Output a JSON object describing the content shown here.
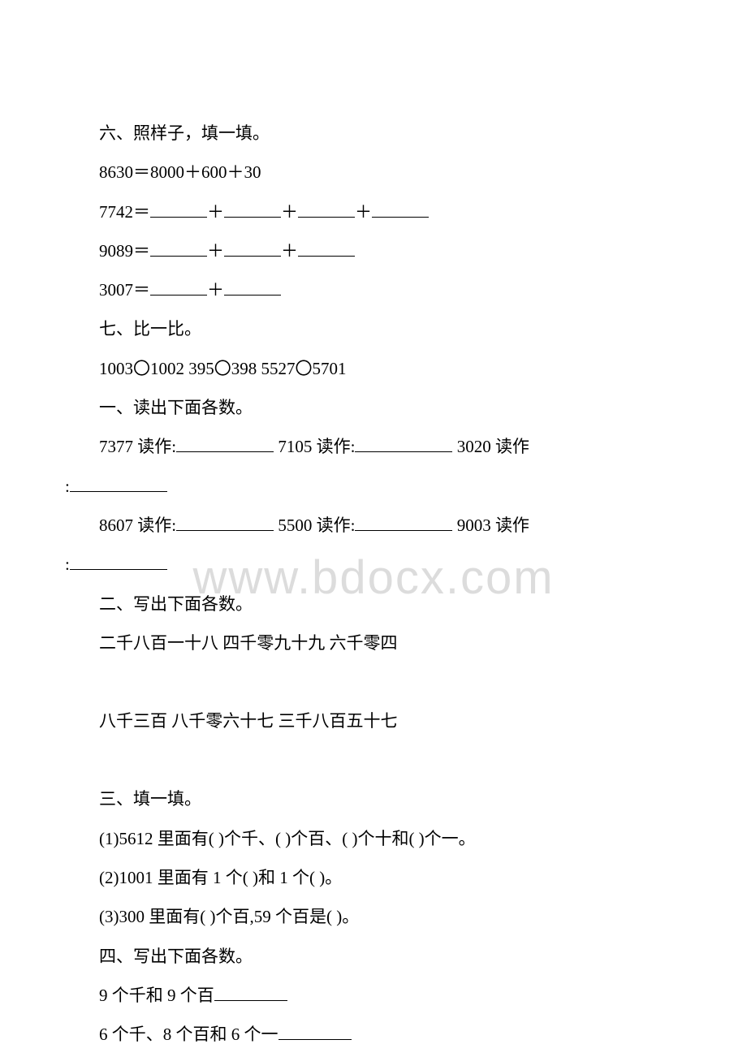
{
  "watermark": "www.bdocx.com",
  "section6": {
    "title": "六、照样子，填一填。",
    "example": "8630＝8000＋600＋30",
    "p7742_prefix": "7742＝",
    "p9089_prefix": "9089＝",
    "p3007_prefix": "3007＝",
    "plus": "＋"
  },
  "section7": {
    "title": "七、比一比。",
    "compare_line": "1003〇1002   395〇398   5527〇5701"
  },
  "section1": {
    "title": "一、读出下面各数。",
    "r1_a": "7377 读作:",
    "r1_b": "7105 读作:",
    "r1_c": "3020 读作",
    "r2_a": "8607 读作:",
    "r2_b": "5500 读作:",
    "r2_c": "9003 读作",
    "colon": ":"
  },
  "section2": {
    "title": "二、写出下面各数。",
    "row1": "二千八百一十八   四千零九十九   六千零四",
    "row2": "八千三百   八千零六十七   三千八百五十七"
  },
  "section3": {
    "title": "三、填一填。",
    "item1": "(1)5612 里面有(  )个千、(  )个百、(  )个十和(  )个一。",
    "item2": "(2)1001 里面有 1 个(  )和 1 个(  )。",
    "item3": "(3)300 里面有(  )个百,59 个百是(  )。"
  },
  "section4": {
    "title": "四、写出下面各数。",
    "item1": "9 个千和 9 个百",
    "item2": "6 个千、8 个百和 6 个一"
  }
}
